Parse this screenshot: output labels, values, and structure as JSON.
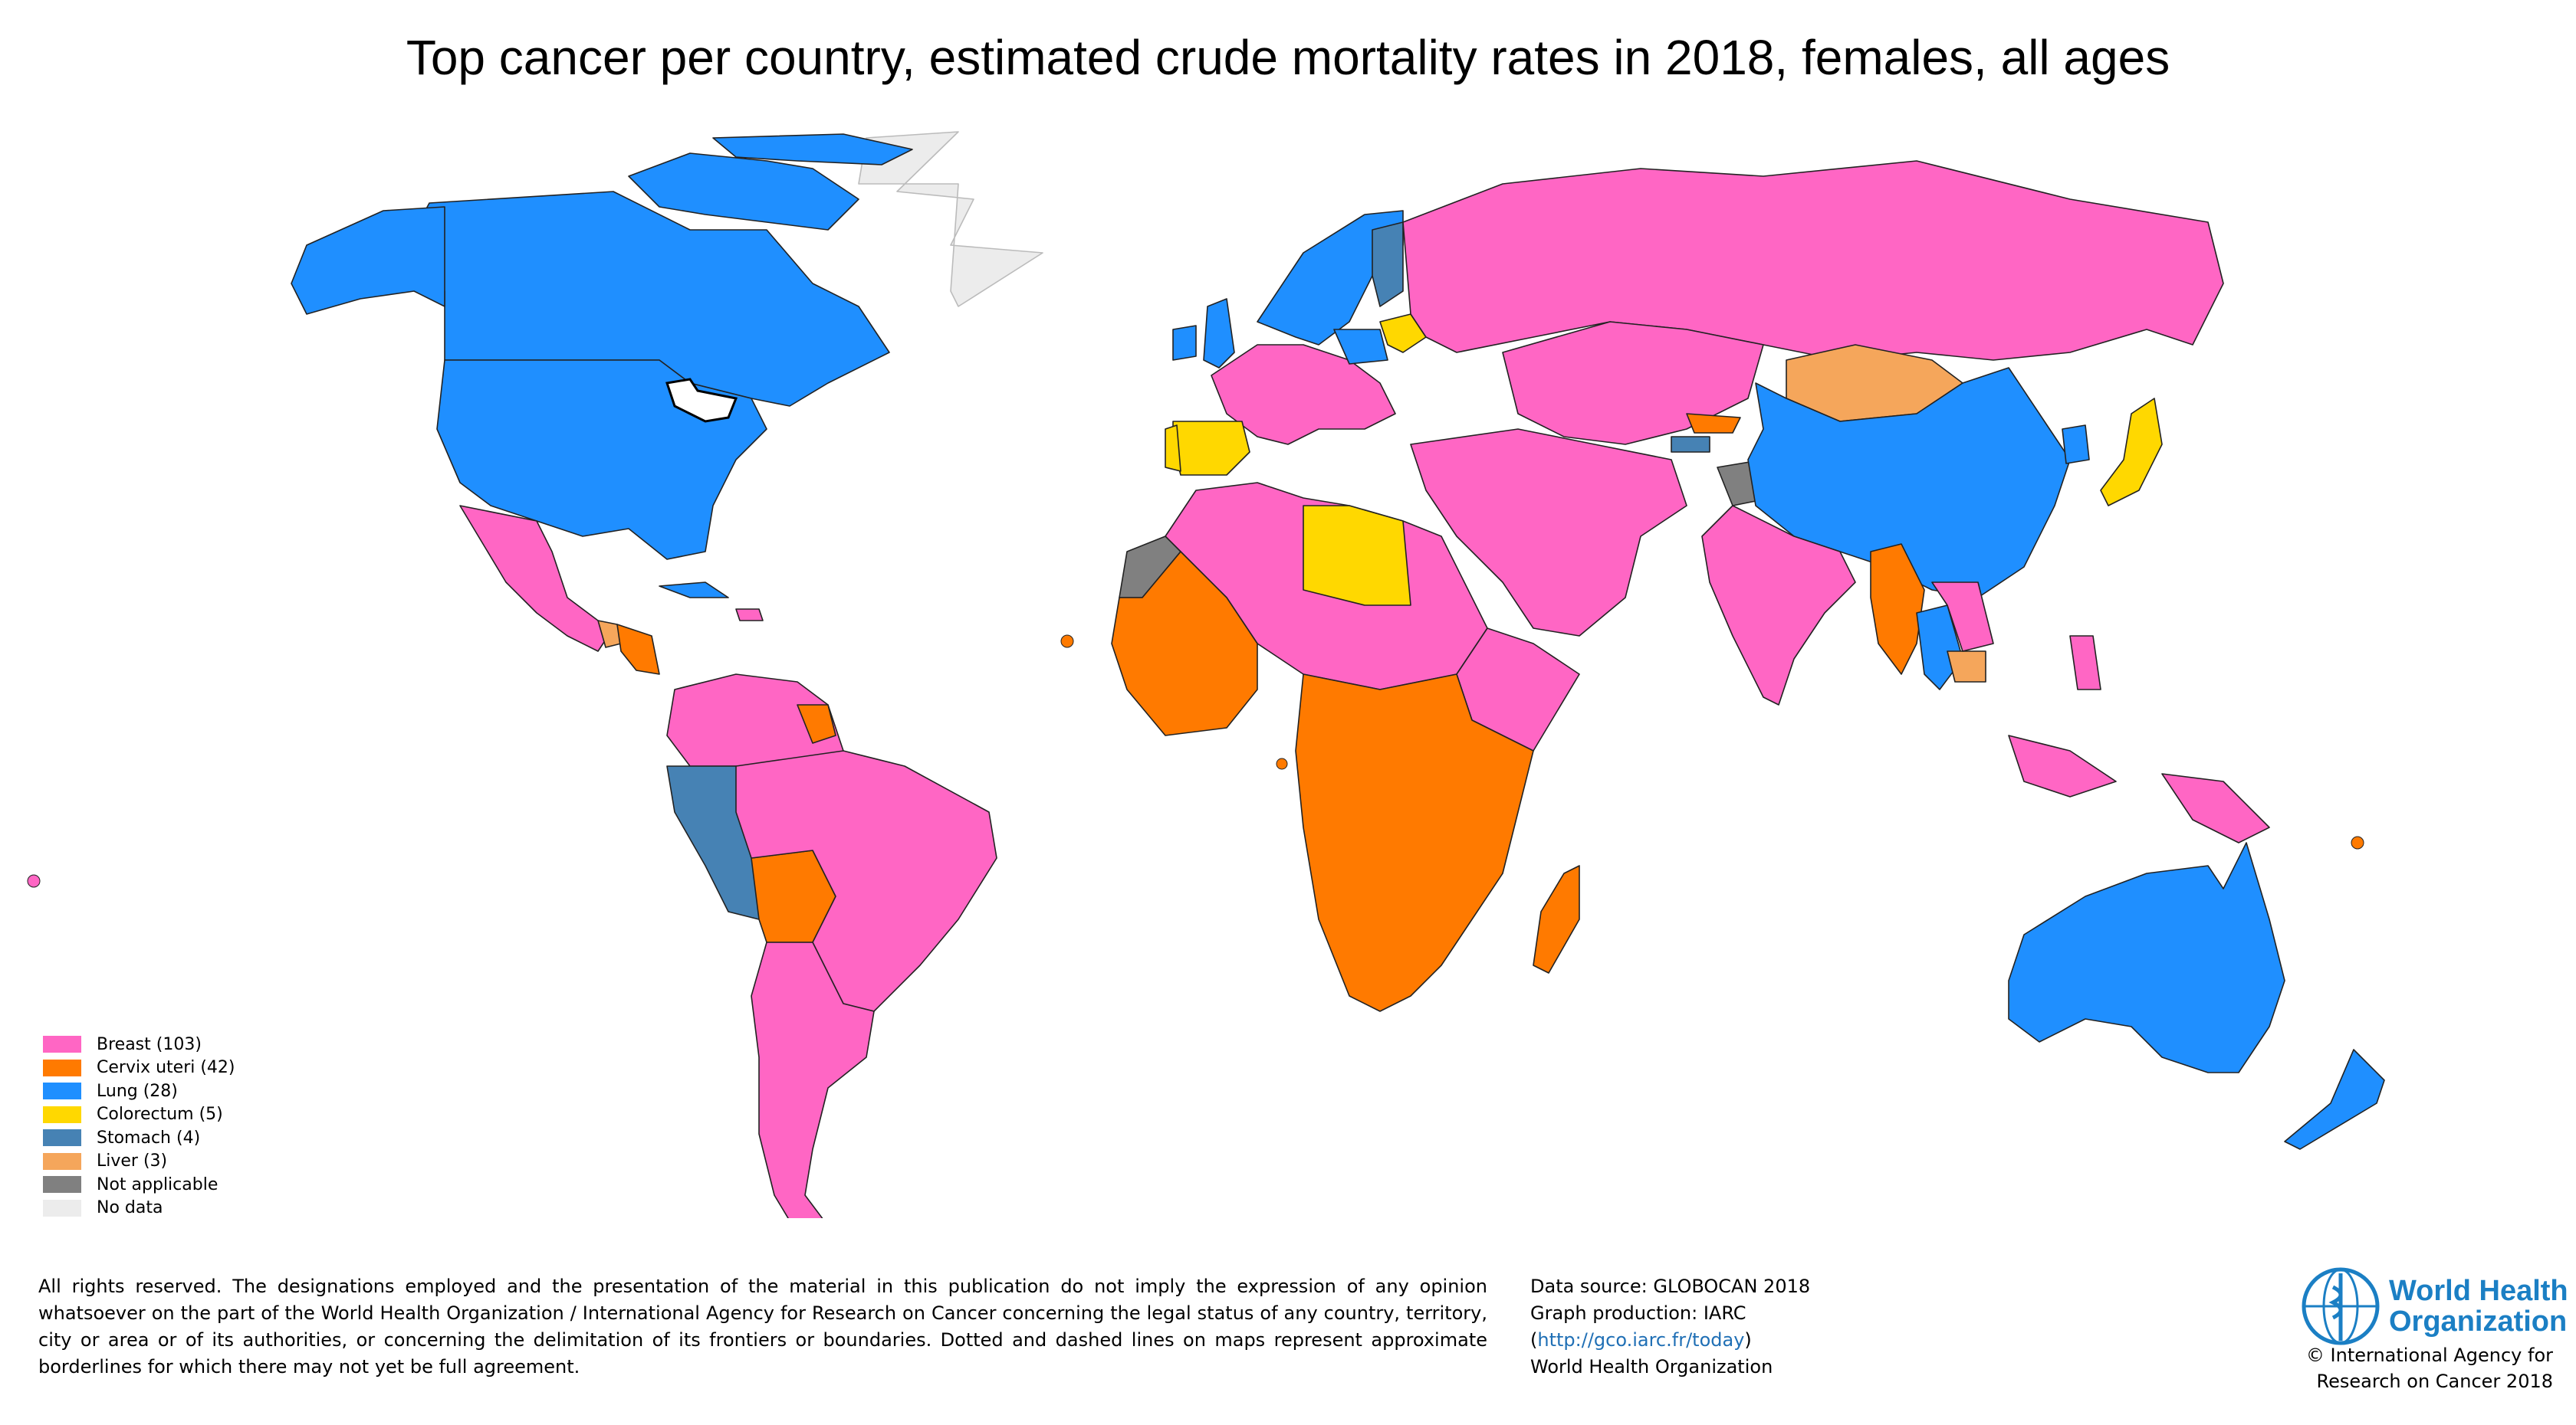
{
  "title": "Top cancer per country, estimated crude mortality rates in 2018, females, all ages",
  "colors": {
    "breast": "#ff66c4",
    "cervix": "#ff7a00",
    "lung": "#1f8fff",
    "colorectum": "#ffd800",
    "stomach": "#4682b4",
    "liver": "#f5a65b",
    "not_applicable": "#808080",
    "no_data": "#ececec"
  },
  "legend": [
    {
      "label": "Breast (103)",
      "color": "#ff66c4"
    },
    {
      "label": "Cervix uteri (42)",
      "color": "#ff7a00"
    },
    {
      "label": "Lung (28)",
      "color": "#1f8fff"
    },
    {
      "label": "Colorectum (5)",
      "color": "#ffd800"
    },
    {
      "label": "Stomach (4)",
      "color": "#4682b4"
    },
    {
      "label": "Liver (3)",
      "color": "#f5a65b"
    },
    {
      "label": "Not applicable",
      "color": "#808080"
    },
    {
      "label": "No data",
      "color": "#ececec"
    }
  ],
  "disclaimer": "All rights reserved. The designations employed and the presentation of the material in this publication do not imply the expression of any opinion whatsoever on the part of the World Health Organization / International Agency for Research on Cancer concerning the legal status of any country, territory, city or area or of its authorities, or concerning the delimitation of its frontiers or boundaries. Dotted and dashed lines on maps represent approximate borderlines for which there may not yet be full agreement.",
  "source": {
    "line1": "Data source: GLOBOCAN 2018",
    "line2": "Graph production: IARC",
    "link_open": "(",
    "link": "http://gco.iarc.fr/today",
    "link_close": ")",
    "line4": "World Health Organization"
  },
  "who": {
    "name_line1": "World Health",
    "name_line2": "Organization"
  },
  "copyright": {
    "line1": "© International Agency for",
    "line2": "Research on Cancer 2018"
  }
}
